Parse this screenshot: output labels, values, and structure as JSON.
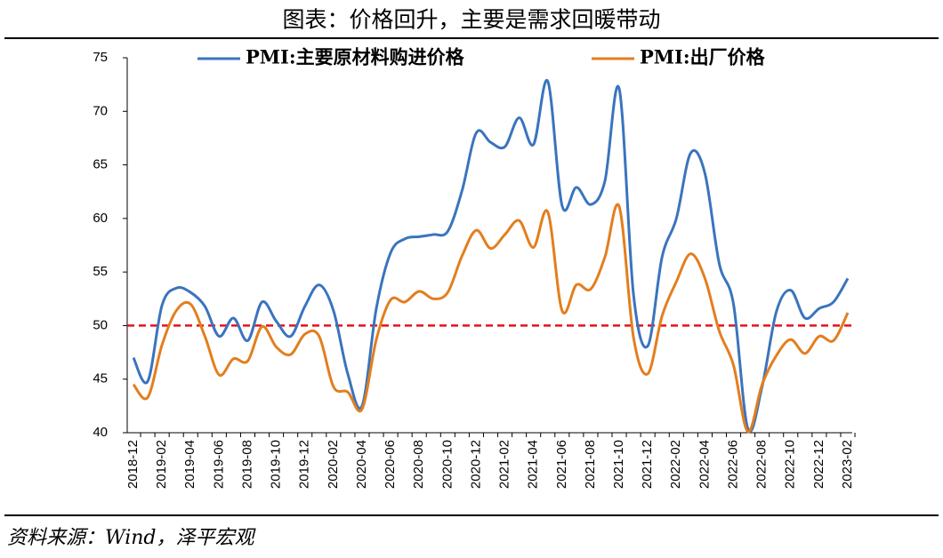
{
  "chart_data": {
    "type": "line",
    "title": "图表：价格回升，主要是需求回暖带动",
    "source": "资料来源：Wind，泽平宏观",
    "categories": [
      "2018-12",
      null,
      "2019-02",
      null,
      "2019-04",
      null,
      "2019-06",
      null,
      "2019-08",
      null,
      "2019-10",
      null,
      "2019-12",
      null,
      "2020-02",
      null,
      "2020-04",
      null,
      "2020-06",
      null,
      "2020-08",
      null,
      "2020-10",
      null,
      "2020-12",
      null,
      "2021-02",
      null,
      "2021-04",
      null,
      "2021-06",
      null,
      "2021-08",
      null,
      "2021-10",
      null,
      "2021-12",
      null,
      "2022-02",
      null,
      "2022-04",
      null,
      "2022-06",
      null,
      "2022-08",
      null,
      "2022-10",
      null,
      "2022-12",
      null,
      "2023-02"
    ],
    "series": [
      {
        "name": "PMI:主要原材料购进价格",
        "color": "#3a74bd",
        "values": [
          47.0,
          44.8,
          51.9,
          53.5,
          53.1,
          51.8,
          49.0,
          50.7,
          48.6,
          52.2,
          50.4,
          49.0,
          51.8,
          53.8,
          51.4,
          45.5,
          42.5,
          51.6,
          56.8,
          58.1,
          58.3,
          58.5,
          58.8,
          62.6,
          68.0,
          67.1,
          66.7,
          69.4,
          66.9,
          72.8,
          61.2,
          62.9,
          61.3,
          63.5,
          72.1,
          52.9,
          48.1,
          56.4,
          60.0,
          66.1,
          64.2,
          55.8,
          52.0,
          40.4,
          44.3,
          51.3,
          53.3,
          50.7,
          51.6,
          52.2,
          54.4
        ]
      },
      {
        "name": "PMI:出厂价格",
        "color": "#e37e1e",
        "values": [
          44.5,
          43.3,
          48.2,
          51.4,
          52.0,
          49.0,
          45.4,
          46.9,
          46.7,
          49.9,
          48.0,
          47.3,
          49.2,
          49.0,
          44.3,
          43.8,
          42.2,
          48.7,
          52.4,
          52.2,
          53.2,
          52.5,
          53.1,
          56.5,
          58.9,
          57.2,
          58.5,
          59.8,
          57.3,
          60.6,
          51.4,
          53.8,
          53.4,
          56.4,
          61.1,
          48.9,
          45.5,
          50.9,
          54.1,
          56.7,
          54.4,
          49.5,
          46.3,
          40.1,
          44.5,
          47.2,
          48.7,
          47.4,
          49.0,
          48.6,
          51.2
        ]
      }
    ],
    "reference_line": {
      "value": 50,
      "color": "#e8101b"
    },
    "ylim": [
      40,
      75
    ],
    "yticks": [
      40,
      45,
      50,
      55,
      60,
      65,
      70,
      75
    ]
  }
}
